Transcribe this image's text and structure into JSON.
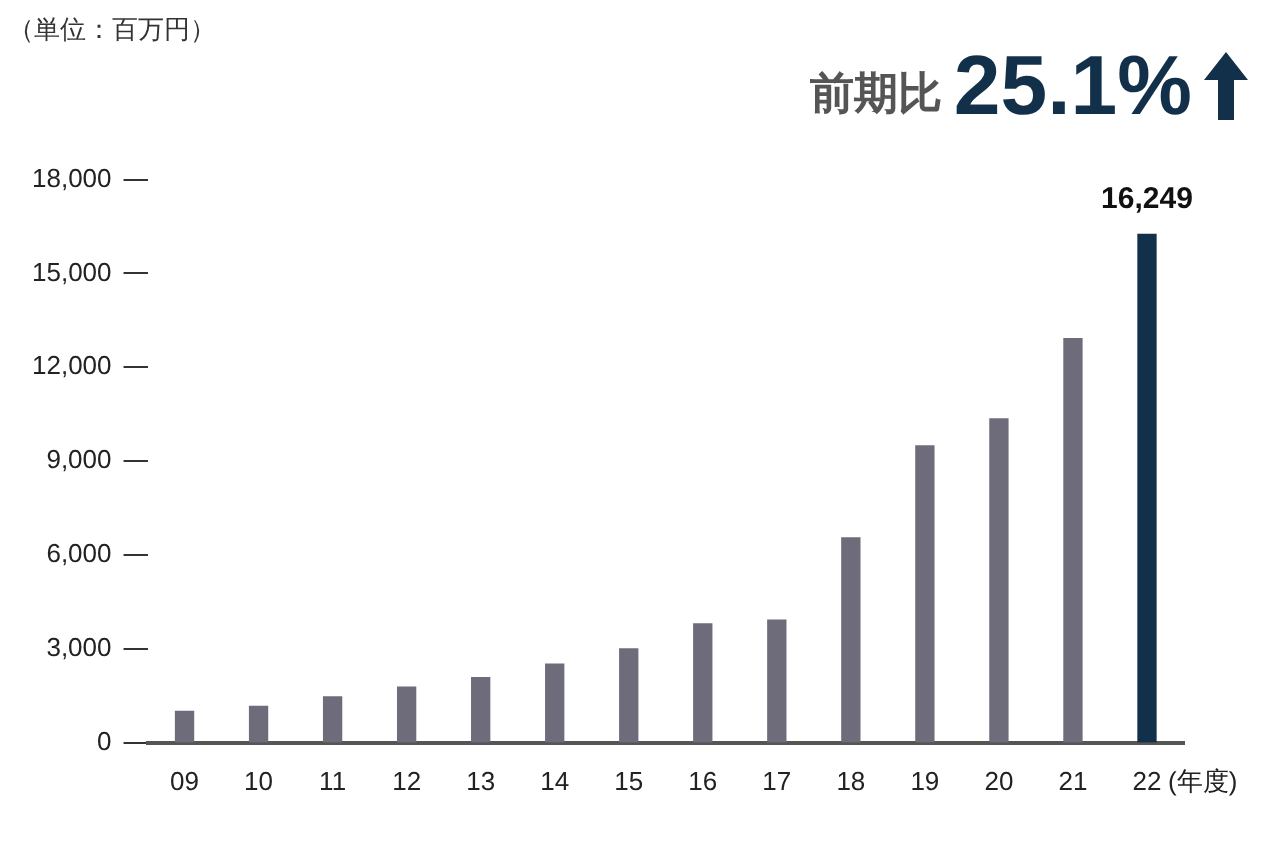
{
  "chart_data": {
    "type": "bar",
    "xlabel": "(年度)",
    "annotations": [
      "（単位：百万円）",
      "前期比",
      "25.1%"
    ],
    "categories": [
      "09",
      "10",
      "11",
      "12",
      "13",
      "14",
      "15",
      "16",
      "17",
      "18",
      "19",
      "20",
      "21",
      "22"
    ],
    "values": [
      1000,
      1160,
      1470,
      1780,
      2080,
      2510,
      3000,
      3800,
      3920,
      6550,
      9490,
      10350,
      12920,
      16249
    ],
    "colors": [
      "#6e6b7b",
      "#6e6b7b",
      "#6e6b7b",
      "#6e6b7b",
      "#6e6b7b",
      "#6e6b7b",
      "#6e6b7b",
      "#6e6b7b",
      "#6e6b7b",
      "#6e6b7b",
      "#6e6b7b",
      "#6e6b7b",
      "#6e6b7b",
      "#13304a"
    ],
    "value_labels": [
      null,
      null,
      null,
      null,
      null,
      null,
      null,
      null,
      null,
      null,
      null,
      null,
      null,
      "16,249"
    ],
    "ylim": [
      0,
      18000
    ],
    "yticks": [
      {
        "value": 0,
        "label": "0"
      },
      {
        "value": 3000,
        "label": "3,000"
      },
      {
        "value": 6000,
        "label": "6,000"
      },
      {
        "value": 9000,
        "label": "9,000"
      },
      {
        "value": 12000,
        "label": "12,000"
      },
      {
        "value": 15000,
        "label": "15,000"
      },
      {
        "value": 18000,
        "label": "18,000"
      }
    ],
    "grid": false,
    "legend": false
  }
}
